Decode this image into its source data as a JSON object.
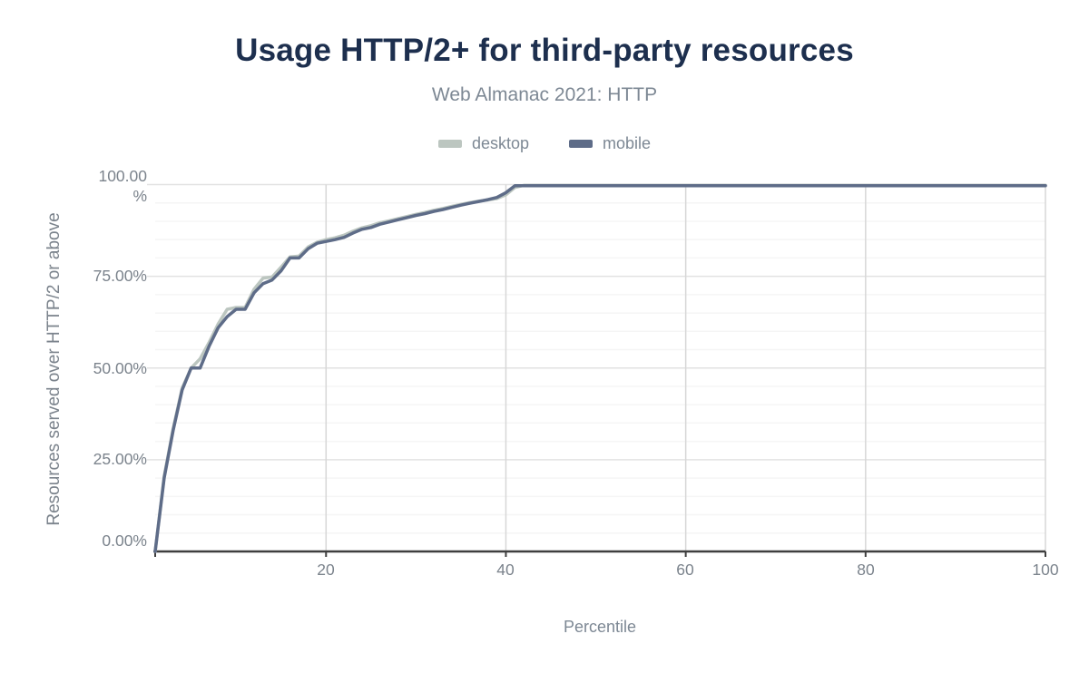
{
  "header": {
    "title": "Usage HTTP/2+ for third-party resources",
    "subtitle": "Web Almanac 2021: HTTP"
  },
  "legend": [
    {
      "label": "desktop",
      "color": "#bcc6c0"
    },
    {
      "label": "mobile",
      "color": "#5e6c88"
    }
  ],
  "colors": {
    "title_text": "#1d2f4e",
    "muted_text": "#7d8894",
    "tick_text": "#7b838c",
    "axis_line": "#3f3f3f",
    "major_gridline": "#e2e2e2",
    "minor_gridline": "#f5f5f5",
    "vertical_gridline": "#d7d7d7"
  },
  "chart_data": {
    "type": "line",
    "title": "Usage HTTP/2+ for third-party resources",
    "subtitle": "Web Almanac 2021: HTTP",
    "xlabel": "Percentile",
    "ylabel": "Resources served over HTTP/2 or above",
    "xlim": [
      1,
      100
    ],
    "ylim": [
      0,
      100
    ],
    "x_ticks": [
      20,
      40,
      60,
      80,
      100
    ],
    "y_ticks": [
      0,
      25,
      50,
      75,
      100
    ],
    "y_tick_labels": [
      "0.00%",
      "25.00%",
      "50.00%",
      "75.00%",
      "100.00\n%"
    ],
    "grid": {
      "horizontal_major": true,
      "horizontal_minor_step": 5,
      "vertical_major": true,
      "legend_position": "top-center"
    },
    "series": [
      {
        "name": "desktop",
        "color": "#bcc6c0",
        "points": [
          [
            1,
            0
          ],
          [
            2,
            20.5
          ],
          [
            3,
            33.5
          ],
          [
            4,
            44.5
          ],
          [
            5,
            50
          ],
          [
            6,
            52.5
          ],
          [
            7,
            57
          ],
          [
            8,
            62
          ],
          [
            9,
            66
          ],
          [
            10,
            66.5
          ],
          [
            11,
            66.5
          ],
          [
            12,
            71.5
          ],
          [
            13,
            74.5
          ],
          [
            14,
            74.8
          ],
          [
            15,
            77.5
          ],
          [
            16,
            80.3
          ],
          [
            17,
            80.5
          ],
          [
            18,
            83
          ],
          [
            19,
            84.3
          ],
          [
            20,
            85
          ],
          [
            21,
            85.5
          ],
          [
            22,
            86.2
          ],
          [
            23,
            87.3
          ],
          [
            24,
            88.2
          ],
          [
            25,
            88.8
          ],
          [
            26,
            89.6
          ],
          [
            27,
            90.1
          ],
          [
            28,
            90.7
          ],
          [
            29,
            91.3
          ],
          [
            30,
            91.9
          ],
          [
            31,
            92.4
          ],
          [
            32,
            93
          ],
          [
            33,
            93.5
          ],
          [
            34,
            94.1
          ],
          [
            35,
            94.6
          ],
          [
            36,
            95.1
          ],
          [
            37,
            95.5
          ],
          [
            38,
            95.8
          ],
          [
            39,
            96.2
          ],
          [
            40,
            97.2
          ],
          [
            41,
            99.2
          ],
          [
            42,
            99.8
          ],
          [
            100,
            99.8
          ]
        ]
      },
      {
        "name": "mobile",
        "color": "#5e6c88",
        "points": [
          [
            1,
            0
          ],
          [
            2,
            20
          ],
          [
            3,
            33
          ],
          [
            4,
            44
          ],
          [
            5,
            50
          ],
          [
            6,
            50
          ],
          [
            7,
            56
          ],
          [
            8,
            61
          ],
          [
            9,
            64
          ],
          [
            10,
            66
          ],
          [
            11,
            66
          ],
          [
            12,
            70.5
          ],
          [
            13,
            73
          ],
          [
            14,
            74
          ],
          [
            15,
            76.5
          ],
          [
            16,
            80
          ],
          [
            17,
            80
          ],
          [
            18,
            82.5
          ],
          [
            19,
            84
          ],
          [
            20,
            84.5
          ],
          [
            21,
            85
          ],
          [
            22,
            85.6
          ],
          [
            23,
            86.8
          ],
          [
            24,
            87.8
          ],
          [
            25,
            88.3
          ],
          [
            26,
            89.2
          ],
          [
            27,
            89.8
          ],
          [
            28,
            90.4
          ],
          [
            29,
            91
          ],
          [
            30,
            91.6
          ],
          [
            31,
            92.1
          ],
          [
            32,
            92.7
          ],
          [
            33,
            93.2
          ],
          [
            34,
            93.8
          ],
          [
            35,
            94.4
          ],
          [
            36,
            94.9
          ],
          [
            37,
            95.4
          ],
          [
            38,
            95.9
          ],
          [
            39,
            96.5
          ],
          [
            40,
            97.8
          ],
          [
            41,
            99.7
          ],
          [
            100,
            99.7
          ]
        ]
      }
    ]
  }
}
